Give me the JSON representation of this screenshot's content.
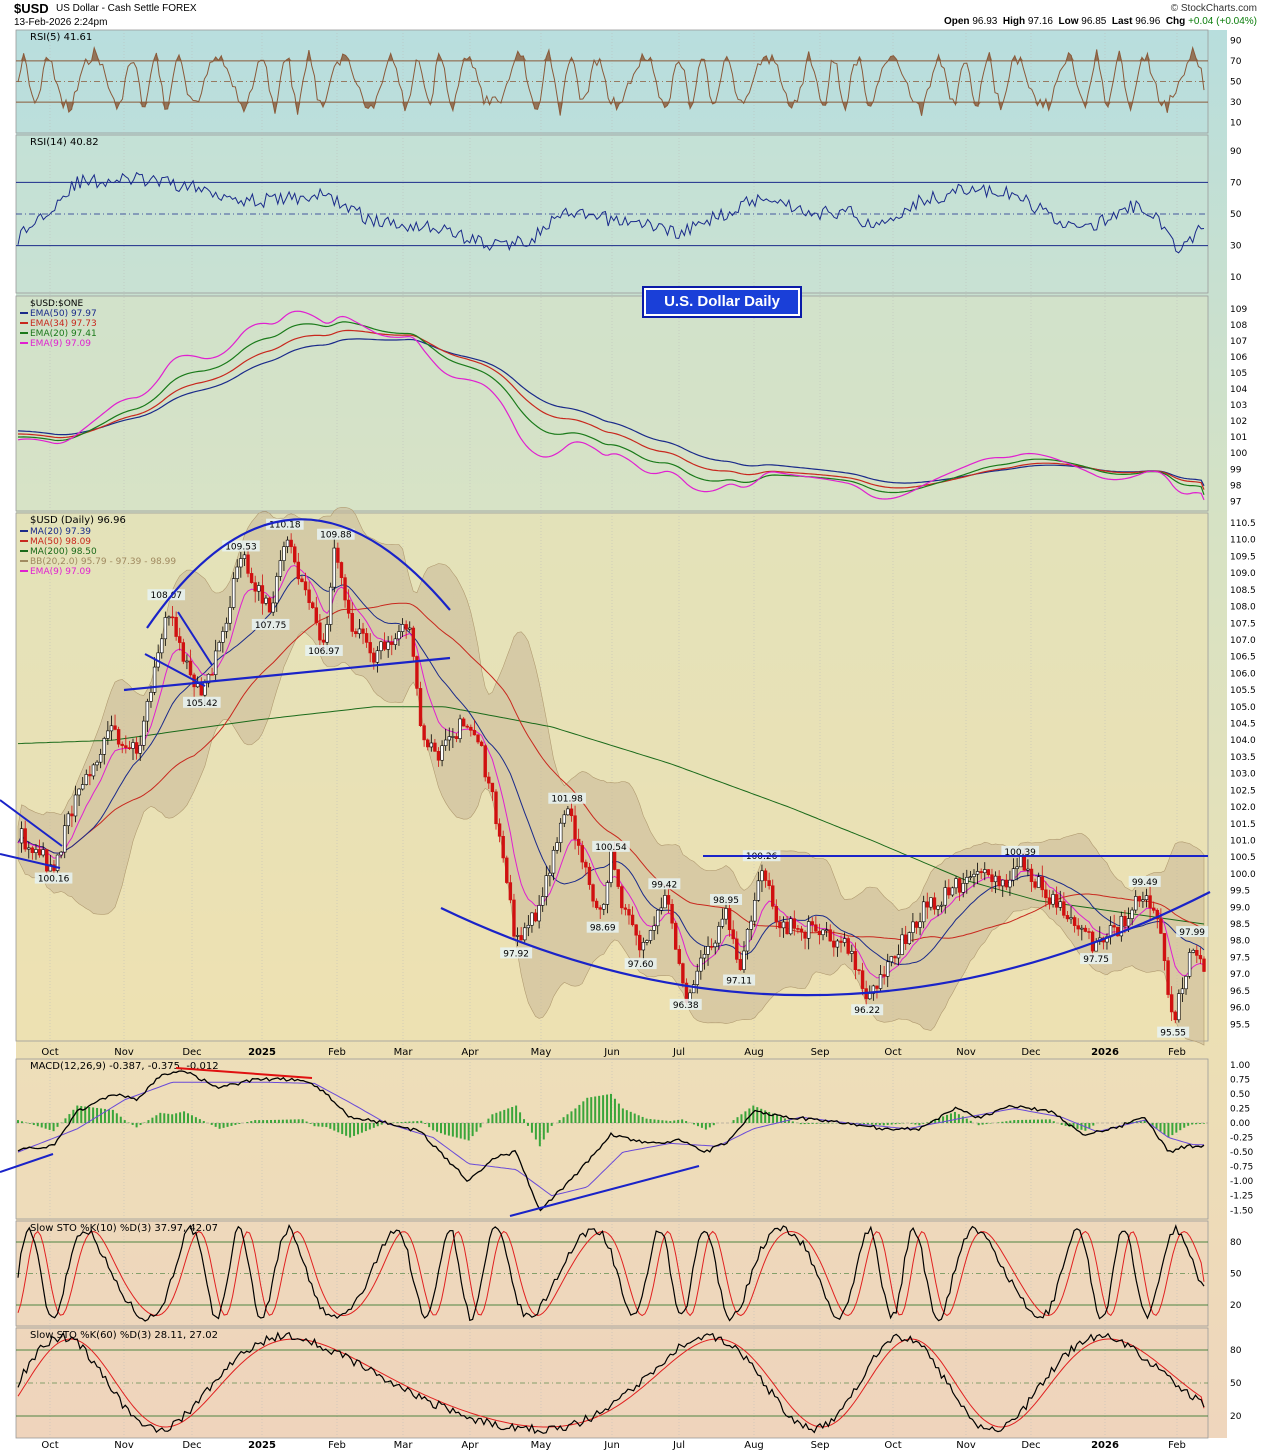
{
  "header": {
    "symbol": "$USD",
    "name": "US Dollar - Cash Settle",
    "exchange": "FOREX",
    "date": "13-Feb-2026 2:24pm",
    "brand": "© StockCharts.com",
    "open_label": "Open",
    "open": "96.93",
    "high_label": "High",
    "high": "97.16",
    "low_label": "Low",
    "low": "96.85",
    "last_label": "Last",
    "last": "96.96",
    "chg_label": "Chg",
    "chg": "+0.04 (+0.04%)"
  },
  "annotation_title": "U.S. Dollar Daily",
  "x_axis": {
    "labels": [
      "Oct",
      "Nov",
      "Dec",
      "2025",
      "Feb",
      "Mar",
      "Apr",
      "May",
      "Jun",
      "Jul",
      "Aug",
      "Sep",
      "Oct",
      "Nov",
      "Dec",
      "2026",
      "Feb"
    ]
  },
  "colors": {
    "background_top": "#b8dedd",
    "background_bottom": "#efdcbf",
    "price_band": "#c8b898",
    "annotation_blue": "#1a23c8",
    "rsi5_fill": "#8a5a3a",
    "rsi14_line": "#1a2a8a",
    "ema50": "#1a2a8a",
    "ema34": "#c8281e",
    "ema20": "#1a7a1a",
    "ema9": "#e020d0",
    "macd_hist": "#3aa53a",
    "sto_k": "#000000",
    "sto_d": "#e02020"
  },
  "chart_data": [
    {
      "type": "line",
      "panel": "rsi5",
      "title": "RSI(5) 41.61",
      "y_ticks": [
        90,
        70,
        50,
        30,
        10
      ],
      "ylim": [
        0,
        100
      ],
      "series": [
        {
          "name": "RSI(5)",
          "last": 41.61
        }
      ]
    },
    {
      "type": "line",
      "panel": "rsi14",
      "title": "RSI(14) 40.82",
      "y_ticks": [
        90,
        70,
        50,
        30,
        10
      ],
      "ylim": [
        0,
        100
      ],
      "series": [
        {
          "name": "RSI(14)",
          "last": 40.82
        }
      ]
    },
    {
      "type": "line",
      "panel": "ema_ratio",
      "title": "$USD:$ONE",
      "y_ticks": [
        109,
        108,
        107,
        106,
        105,
        104,
        103,
        102,
        101,
        100,
        99,
        98,
        97
      ],
      "ylim": [
        96.4,
        109.8
      ],
      "series": [
        {
          "name": "EMA(50) 97.97",
          "color": "#1a2a8a"
        },
        {
          "name": "EMA(34) 97.73",
          "color": "#c8281e"
        },
        {
          "name": "EMA(20) 97.41",
          "color": "#1a7a1a"
        },
        {
          "name": "EMA(9) 97.09",
          "color": "#e020d0"
        }
      ]
    },
    {
      "type": "candlestick",
      "panel": "price",
      "title": "$USD (Daily) 96.96",
      "y_ticks": [
        "110.5",
        "110.0",
        "109.5",
        "109.0",
        "108.5",
        "108.0",
        "107.5",
        "107.0",
        "106.5",
        "106.0",
        "105.5",
        "105.0",
        "104.5",
        "104.0",
        "103.5",
        "103.0",
        "102.5",
        "102.0",
        "101.5",
        "101.0",
        "100.5",
        "100.0",
        "99.5",
        "99.0",
        "98.5",
        "98.0",
        "97.5",
        "97.0",
        "96.5",
        "96.0",
        "95.5"
      ],
      "ylim": [
        95.0,
        110.8
      ],
      "legend": [
        {
          "name": "MA(20) 97.39",
          "color": "#1a2a8a"
        },
        {
          "name": "MA(50) 98.09",
          "color": "#c8281e"
        },
        {
          "name": "MA(200) 98.50",
          "color": "#1a6a1a"
        },
        {
          "name": "BB(20,2.0) 95.79 - 97.39 - 98.99",
          "color": "#a08a60"
        },
        {
          "name": "EMA(9) 97.09",
          "color": "#e020d0"
        }
      ],
      "key_points": [
        {
          "t": 0.03,
          "v": 100.16,
          "label": "100.16",
          "pos": "below"
        },
        {
          "t": 0.125,
          "v": 108.07,
          "label": "108.07",
          "pos": "above"
        },
        {
          "t": 0.155,
          "v": 105.42,
          "label": "105.42",
          "pos": "below"
        },
        {
          "t": 0.188,
          "v": 109.53,
          "label": "109.53",
          "pos": "above"
        },
        {
          "t": 0.213,
          "v": 107.75,
          "label": "107.75",
          "pos": "below"
        },
        {
          "t": 0.225,
          "v": 110.18,
          "label": "110.18",
          "pos": "above"
        },
        {
          "t": 0.258,
          "v": 106.97,
          "label": "106.97",
          "pos": "below"
        },
        {
          "t": 0.268,
          "v": 109.88,
          "label": "109.88",
          "pos": "above"
        },
        {
          "t": 0.42,
          "v": 97.92,
          "label": "97.92",
          "pos": "below"
        },
        {
          "t": 0.463,
          "v": 101.98,
          "label": "101.98",
          "pos": "above"
        },
        {
          "t": 0.493,
          "v": 98.69,
          "label": "98.69",
          "pos": "below"
        },
        {
          "t": 0.5,
          "v": 100.54,
          "label": "100.54",
          "pos": "above"
        },
        {
          "t": 0.525,
          "v": 97.6,
          "label": "97.60",
          "pos": "below"
        },
        {
          "t": 0.545,
          "v": 99.42,
          "label": "99.42",
          "pos": "above"
        },
        {
          "t": 0.563,
          "v": 96.38,
          "label": "96.38",
          "pos": "below"
        },
        {
          "t": 0.597,
          "v": 98.95,
          "label": "98.95",
          "pos": "above"
        },
        {
          "t": 0.608,
          "v": 97.11,
          "label": "97.11",
          "pos": "below"
        },
        {
          "t": 0.627,
          "v": 100.26,
          "label": "100.26",
          "pos": "above"
        },
        {
          "t": 0.716,
          "v": 96.22,
          "label": "96.22",
          "pos": "below"
        },
        {
          "t": 0.845,
          "v": 100.39,
          "label": "100.39",
          "pos": "above"
        },
        {
          "t": 0.909,
          "v": 97.75,
          "label": "97.75",
          "pos": "below"
        },
        {
          "t": 0.95,
          "v": 99.49,
          "label": "99.49",
          "pos": "above"
        },
        {
          "t": 0.974,
          "v": 95.55,
          "label": "95.55",
          "pos": "below"
        },
        {
          "t": 0.99,
          "v": 97.99,
          "label": "97.99",
          "pos": "above"
        }
      ],
      "price_path": [
        [
          0,
          101.2
        ],
        [
          0.03,
          100.16
        ],
        [
          0.05,
          102.5
        ],
        [
          0.08,
          104.3
        ],
        [
          0.1,
          103.6
        ],
        [
          0.12,
          107.0
        ],
        [
          0.125,
          108.07
        ],
        [
          0.14,
          106.3
        ],
        [
          0.155,
          105.42
        ],
        [
          0.17,
          106.8
        ],
        [
          0.188,
          109.53
        ],
        [
          0.213,
          107.75
        ],
        [
          0.225,
          110.18
        ],
        [
          0.24,
          108.5
        ],
        [
          0.258,
          106.97
        ],
        [
          0.268,
          109.88
        ],
        [
          0.28,
          107.5
        ],
        [
          0.3,
          106.6
        ],
        [
          0.33,
          107.5
        ],
        [
          0.34,
          104.3
        ],
        [
          0.355,
          103.5
        ],
        [
          0.375,
          104.5
        ],
        [
          0.39,
          103.8
        ],
        [
          0.405,
          101.4
        ],
        [
          0.42,
          97.92
        ],
        [
          0.44,
          99.0
        ],
        [
          0.463,
          101.98
        ],
        [
          0.48,
          99.8
        ],
        [
          0.493,
          98.69
        ],
        [
          0.5,
          100.54
        ],
        [
          0.51,
          99.0
        ],
        [
          0.525,
          97.6
        ],
        [
          0.545,
          99.42
        ],
        [
          0.563,
          96.38
        ],
        [
          0.58,
          97.5
        ],
        [
          0.597,
          98.95
        ],
        [
          0.608,
          97.11
        ],
        [
          0.627,
          100.26
        ],
        [
          0.64,
          98.5
        ],
        [
          0.67,
          98.3
        ],
        [
          0.7,
          97.8
        ],
        [
          0.716,
          96.22
        ],
        [
          0.74,
          97.6
        ],
        [
          0.76,
          98.8
        ],
        [
          0.79,
          99.6
        ],
        [
          0.81,
          100.2
        ],
        [
          0.83,
          99.7
        ],
        [
          0.845,
          100.39
        ],
        [
          0.86,
          99.7
        ],
        [
          0.88,
          98.9
        ],
        [
          0.9,
          98.2
        ],
        [
          0.909,
          97.75
        ],
        [
          0.93,
          98.5
        ],
        [
          0.95,
          99.49
        ],
        [
          0.962,
          98.5
        ],
        [
          0.974,
          95.55
        ],
        [
          0.99,
          97.99
        ],
        [
          1.0,
          96.96
        ]
      ],
      "moving_averages": {
        "ma20_last": 97.39,
        "ma50_last": 98.09,
        "ma200_last": 98.5
      }
    },
    {
      "type": "line",
      "panel": "macd",
      "title": "MACD(12,26,9) -0.387, -0.375, -0.012",
      "y_ticks": [
        "1.00",
        "0.75",
        "0.50",
        "0.25",
        "0.00",
        "-0.25",
        "-0.50",
        "-0.75",
        "-1.00",
        "-1.25",
        "-1.50"
      ],
      "ylim": [
        -1.65,
        1.1
      ],
      "series": [
        {
          "name": "MACD",
          "value": -0.387
        },
        {
          "name": "Signal",
          "value": -0.375
        },
        {
          "name": "Histogram",
          "value": -0.012
        }
      ]
    },
    {
      "type": "line",
      "panel": "sto10",
      "title": "Slow STO %K(10) %D(3) 37.97, 42.07",
      "y_ticks": [
        80,
        50,
        20
      ],
      "ylim": [
        0,
        100
      ],
      "series": [
        {
          "name": "%K",
          "value": 37.97
        },
        {
          "name": "%D",
          "value": 42.07
        }
      ]
    },
    {
      "type": "line",
      "panel": "sto60",
      "title": "Slow STO %K(60) %D(3) 28.11, 27.02",
      "y_ticks": [
        80,
        50,
        20
      ],
      "ylim": [
        0,
        100
      ],
      "series": [
        {
          "name": "%K",
          "value": 28.11
        },
        {
          "name": "%D",
          "value": 27.02
        }
      ]
    }
  ]
}
